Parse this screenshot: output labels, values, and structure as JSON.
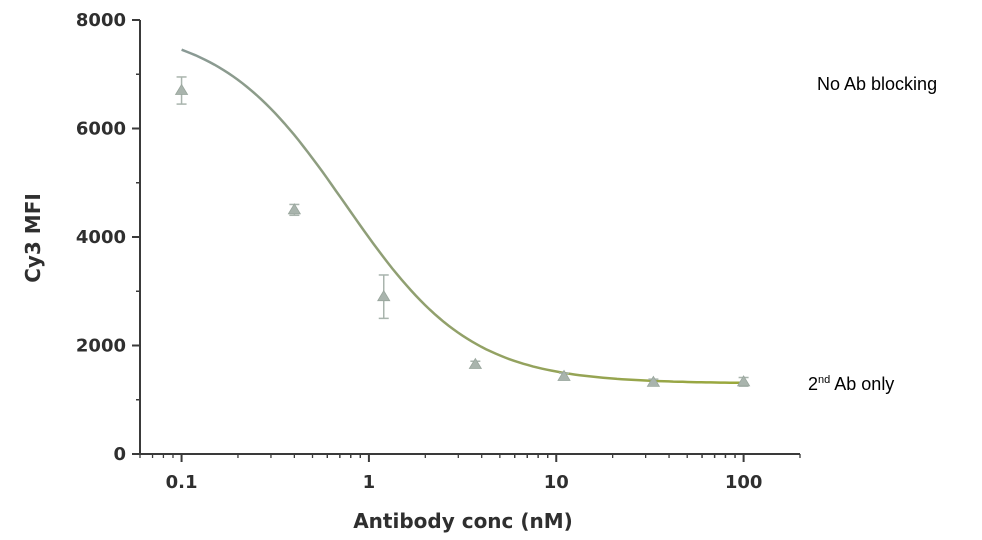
{
  "chart_data": {
    "type": "scatter",
    "title": "",
    "xlabel": "Antibody conc (nM)",
    "ylabel": "Cy3 MFI",
    "x_scale": "log",
    "xlim": [
      0.06,
      200
    ],
    "ylim": [
      0,
      8000
    ],
    "x_ticks": [
      0.1,
      1,
      10,
      100
    ],
    "x_tick_labels": [
      "0.1",
      "1",
      "10",
      "100"
    ],
    "y_ticks": [
      0,
      2000,
      4000,
      6000,
      8000
    ],
    "y_tick_labels": [
      "0",
      "2000",
      "4000",
      "6000",
      "8000"
    ],
    "grid": false,
    "series": [
      {
        "points": [
          {
            "x": 0.1,
            "y": 6700,
            "err": 250
          },
          {
            "x": 0.4,
            "y": 4500,
            "err": 100
          },
          {
            "x": 1.2,
            "y": 2900,
            "err": 400
          },
          {
            "x": 3.7,
            "y": 1650,
            "err": 60
          },
          {
            "x": 11,
            "y": 1430,
            "err": 60
          },
          {
            "x": 33,
            "y": 1320,
            "err": 60
          },
          {
            "x": 100,
            "y": 1330,
            "err": 80
          }
        ],
        "fit_curve": {
          "model": "four-parameter logistic",
          "top": 7900,
          "bottom": 1300,
          "ic50": 0.75,
          "hill": 1.3
        }
      }
    ]
  },
  "annotations": {
    "top_label": "No Ab blocking",
    "bottom_label_superscript": "nd",
    "bottom_label_prefix": "2",
    "bottom_label_suffix": " Ab only"
  },
  "colors": {
    "axis": "#3a3a3a",
    "curve_start": "#8a9a96",
    "curve_end": "#9aa83a",
    "markers": "#a9b4ad"
  }
}
